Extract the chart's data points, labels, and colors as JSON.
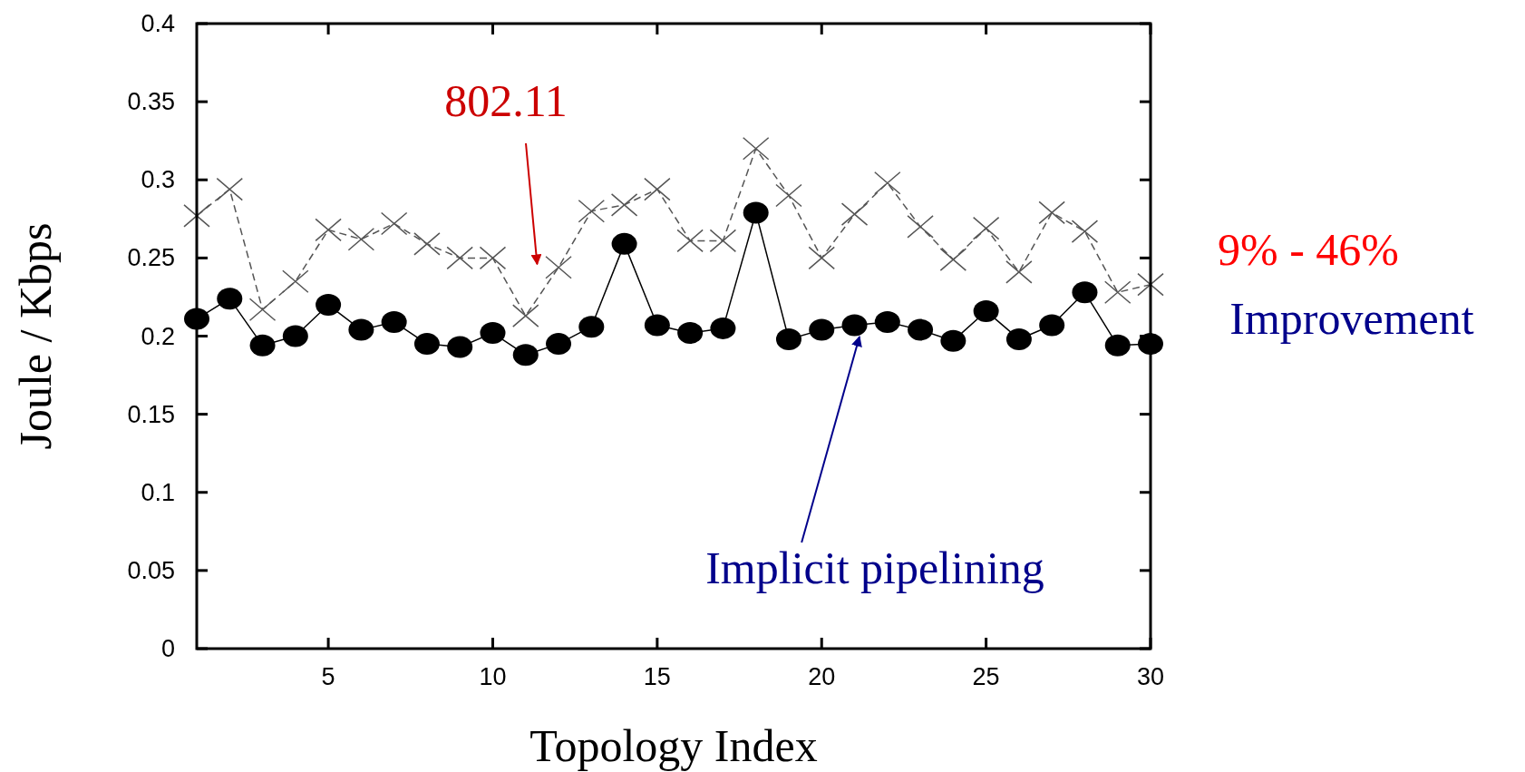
{
  "chart_data": {
    "type": "line",
    "xlabel": "Topology Index",
    "ylabel": "Joule / Kbps",
    "x": [
      1,
      2,
      3,
      4,
      5,
      6,
      7,
      8,
      9,
      10,
      11,
      12,
      13,
      14,
      15,
      16,
      17,
      18,
      19,
      20,
      21,
      22,
      23,
      24,
      25,
      26,
      27,
      28,
      29,
      30
    ],
    "series": [
      {
        "color": "#555555",
        "marker": "cross",
        "line_style": "dashed",
        "values": [
          0.277,
          0.294,
          0.217,
          0.235,
          0.268,
          0.262,
          0.272,
          0.259,
          0.25,
          0.25,
          0.213,
          0.244,
          0.28,
          0.284,
          0.294,
          0.261,
          0.261,
          0.32,
          0.29,
          0.25,
          0.278,
          0.298,
          0.27,
          0.249,
          0.269,
          0.241,
          0.279,
          0.267,
          0.228,
          0.233
        ]
      },
      {
        "color": "#000000",
        "marker": "circle",
        "line_style": "solid",
        "values": [
          0.211,
          0.224,
          0.194,
          0.2,
          0.22,
          0.204,
          0.209,
          0.195,
          0.193,
          0.202,
          0.188,
          0.195,
          0.206,
          0.259,
          0.207,
          0.202,
          0.205,
          0.279,
          0.198,
          0.204,
          0.207,
          0.209,
          0.204,
          0.197,
          0.216,
          0.198,
          0.207,
          0.228,
          0.194,
          0.195
        ]
      }
    ],
    "xlim": [
      1,
      30
    ],
    "xticks": [
      5,
      10,
      15,
      20,
      25,
      30
    ],
    "ylim": [
      0,
      0.4
    ],
    "yticks": [
      0,
      0.05,
      0.1,
      0.15,
      0.2,
      0.25,
      0.3,
      0.35,
      0.4
    ],
    "grid": false,
    "annotations": [
      "802.11",
      {
        "text": "Implicit pipelining",
        "x": 21.15,
        "y": 0.202
      },
      "9% - 46%",
      "Improvement"
    ]
  }
}
